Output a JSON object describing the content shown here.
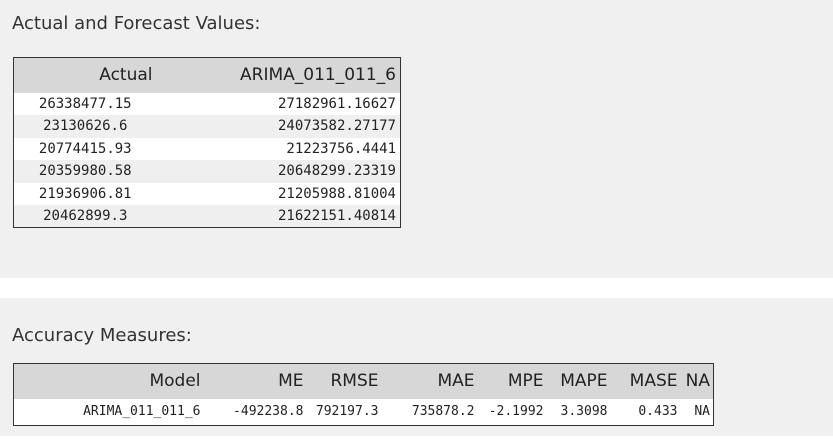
{
  "forecast": {
    "title": "Actual and Forecast Values:",
    "headers": [
      "Actual",
      "ARIMA_011_011_6"
    ],
    "rows": [
      [
        "26338477.15",
        "27182961.16627"
      ],
      [
        "23130626.6",
        "24073582.27177"
      ],
      [
        "20774415.93",
        "21223756.4441"
      ],
      [
        "20359980.58",
        "20648299.23319"
      ],
      [
        "21936906.81",
        "21205988.81004"
      ],
      [
        "20462899.3",
        "21622151.40814"
      ]
    ]
  },
  "accuracy": {
    "title": "Accuracy Measures:",
    "headers": [
      "Model",
      "ME",
      "RMSE",
      "MAE",
      "MPE",
      "MAPE",
      "MASE",
      "NA"
    ],
    "rows": [
      [
        "ARIMA_011_011_6",
        "-492238.8",
        "792197.3",
        "735878.2",
        "-2.1992",
        "3.3098",
        "0.433",
        "NA"
      ]
    ]
  }
}
